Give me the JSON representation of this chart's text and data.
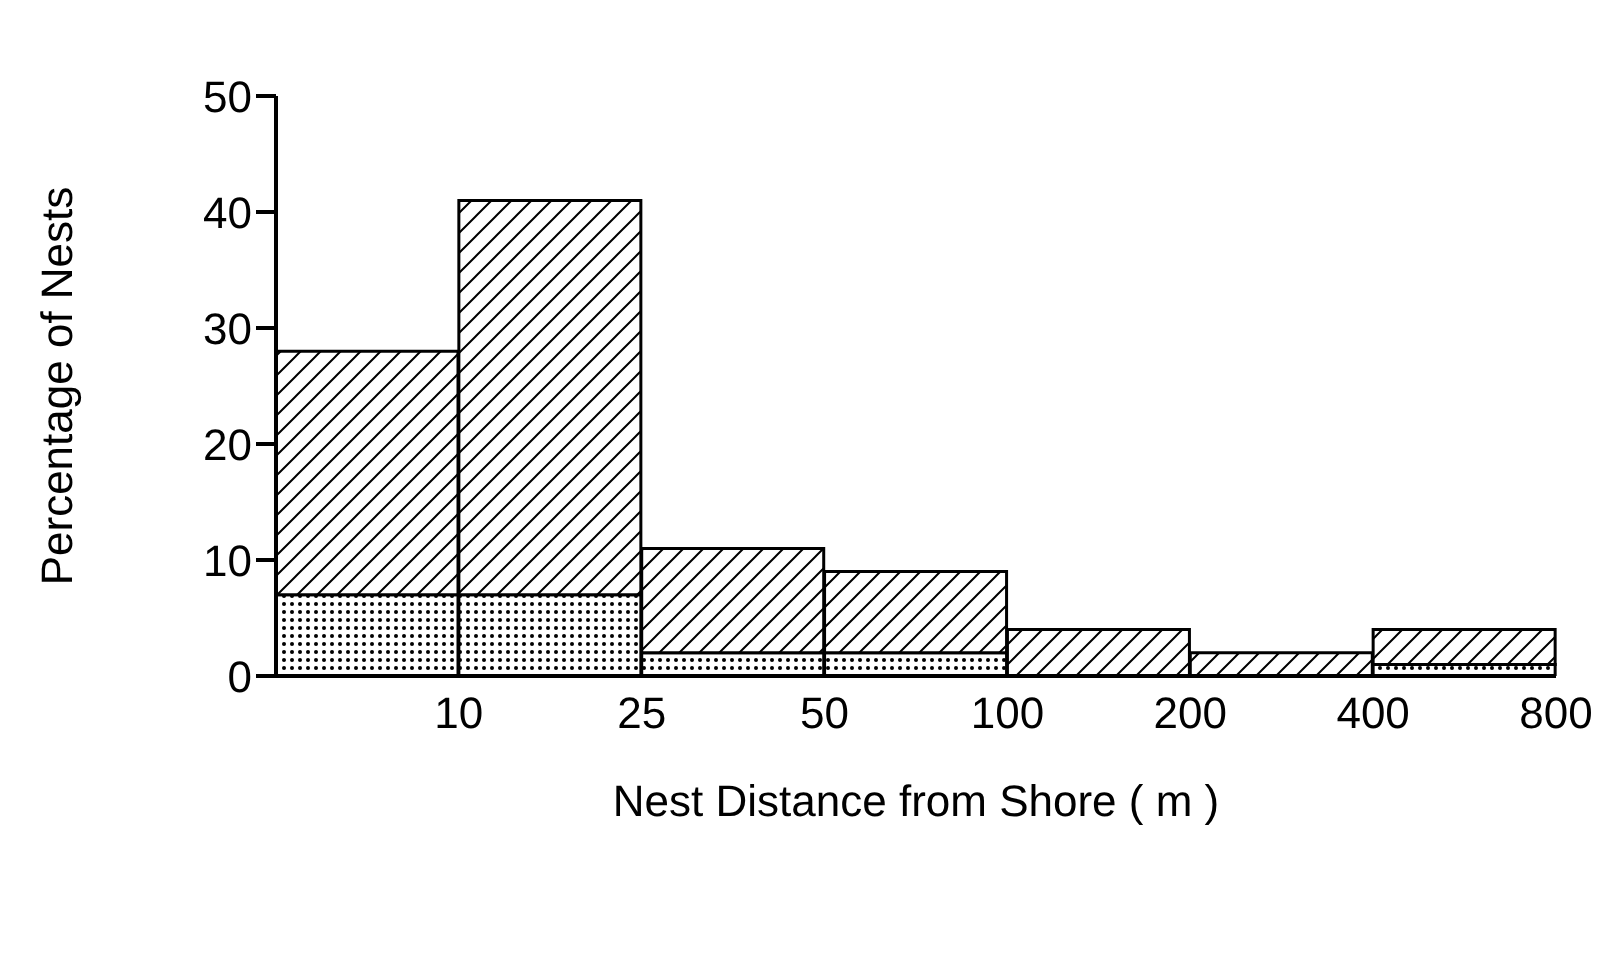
{
  "chart_data": {
    "type": "bar",
    "xlabel": "Nest  Distance  from  Shore  ( m )",
    "ylabel": "Percentage  of  Nests",
    "categories": [
      null,
      null,
      null,
      null,
      null,
      null,
      null
    ],
    "annotations": [
      "10",
      "25",
      "50",
      "100",
      "200",
      "400",
      "800"
    ],
    "stacked": true,
    "series": [
      {
        "color": "#000000",
        "values": [
          7,
          7,
          2,
          2,
          0,
          0,
          1
        ]
      },
      {
        "color": "#000000",
        "values": [
          21,
          34,
          9,
          7,
          4,
          2,
          3
        ]
      }
    ],
    "ylim": [
      0,
      50
    ],
    "yticks": [
      0,
      10,
      20,
      30,
      40,
      50
    ]
  }
}
